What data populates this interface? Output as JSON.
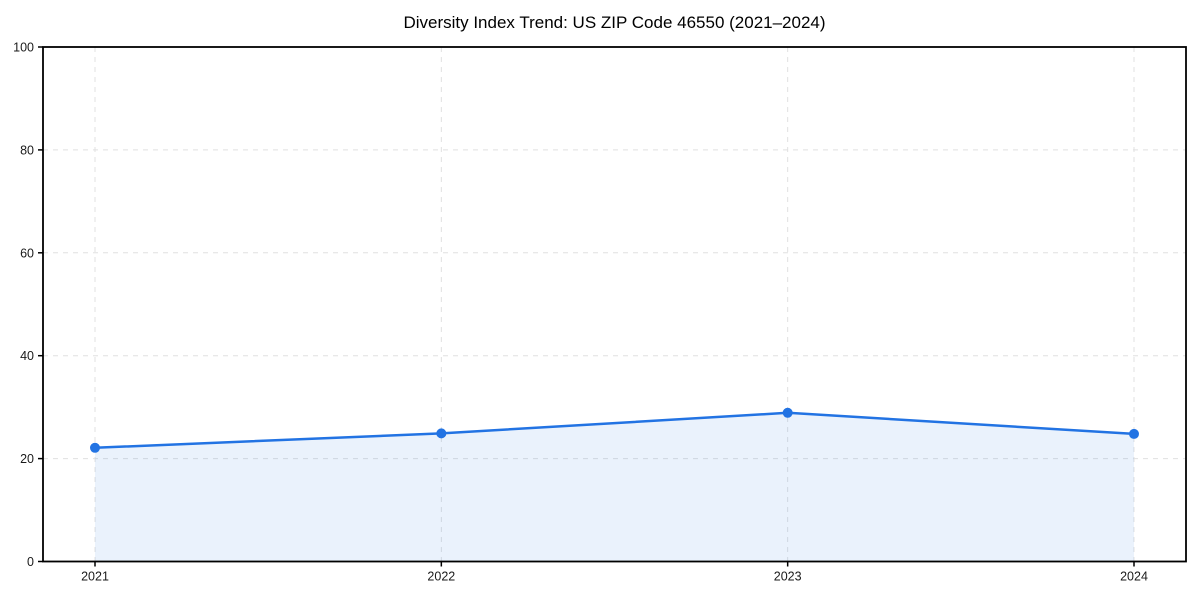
{
  "chart_data": {
    "type": "line",
    "title": "Diversity Index Trend: US ZIP Code 46550 (2021–2024)",
    "x": [
      2021,
      2022,
      2023,
      2024
    ],
    "xtick_labels": [
      "2021",
      "2022",
      "2023",
      "2024"
    ],
    "values": [
      22.1,
      24.9,
      28.9,
      24.8
    ],
    "xlabel": "",
    "ylabel": "",
    "ylim": [
      0,
      100
    ],
    "yticks": [
      0,
      20,
      40,
      60,
      80,
      100
    ],
    "grid": true,
    "grid_style": "dashed",
    "legend_position": "none",
    "area_fill": true,
    "marker": "circle",
    "colors": {
      "line": "#2273e3",
      "marker": "#2273e3",
      "area": "#2273e3",
      "area_opacity": 0.095,
      "grid": "#e0e0e0",
      "axis": "#000000",
      "tick_text": "#1a1a1a",
      "background": "#ffffff"
    }
  }
}
